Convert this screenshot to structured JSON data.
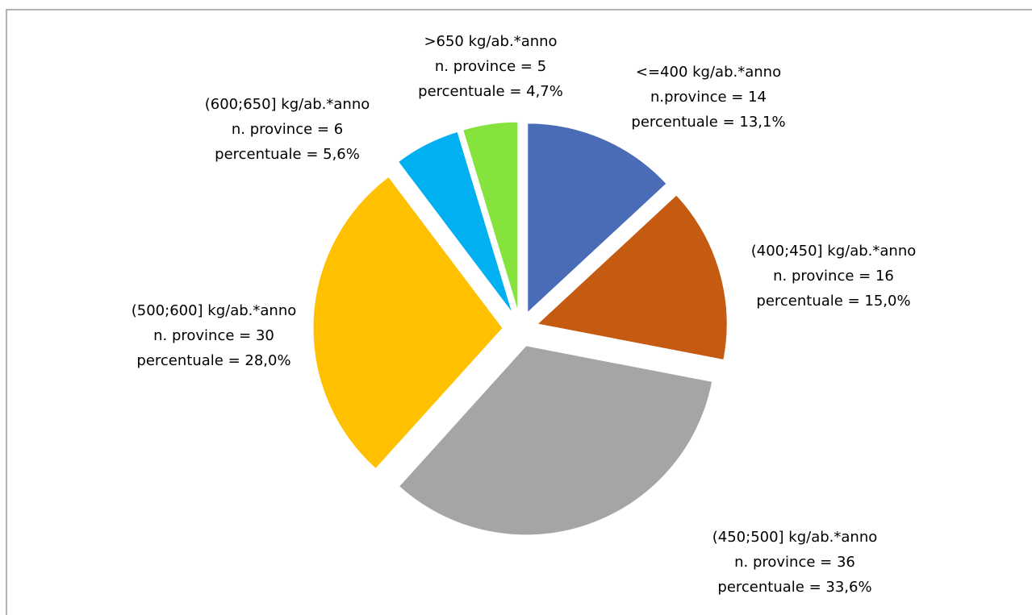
{
  "chart_data": {
    "type": "pie",
    "categories": [
      "<=400 kg/ab.*anno",
      "(400;450] kg/ab.*anno",
      "(450;500] kg/ab.*anno",
      "(500;600] kg/ab.*anno",
      "(600;650] kg/ab.*anno",
      ">650 kg/ab.*anno"
    ],
    "values": [
      14,
      16,
      36,
      30,
      6,
      5
    ],
    "value_labels": [
      "n.province = 14",
      "n. province = 16",
      "n. province = 36",
      "n. province = 30",
      "n. province = 6",
      "n. province = 5"
    ],
    "percentages": [
      13.1,
      15.0,
      33.6,
      28.0,
      5.6,
      4.7
    ],
    "percentage_labels": [
      "percentuale = 13,1%",
      "percentuale = 15,0%",
      "percentuale = 33,6%",
      "percentuale = 28,0%",
      "percentuale = 5,6%",
      "percentuale = 4,7%"
    ],
    "colors": [
      "#4a6cb6",
      "#c55a11",
      "#a5a5a5",
      "#ffc000",
      "#00b0f0",
      "#86e33d"
    ]
  }
}
